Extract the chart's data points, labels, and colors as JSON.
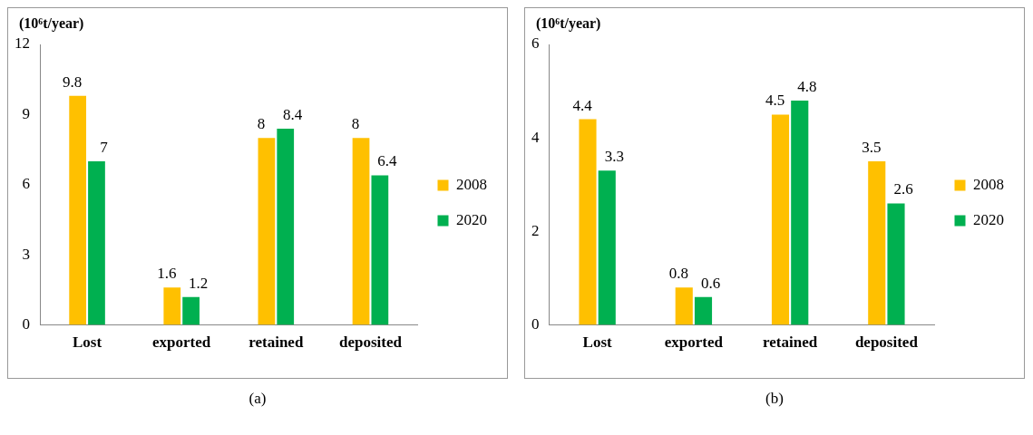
{
  "chart_data": [
    {
      "type": "bar",
      "ylabel": "(10⁶t/year)",
      "categories": [
        "Lost",
        "exported",
        "retained",
        "deposited"
      ],
      "series": [
        {
          "name": "2008",
          "color": "#ffc000",
          "values": [
            9.8,
            1.6,
            8,
            8
          ]
        },
        {
          "name": "2020",
          "color": "#00b050",
          "values": [
            7,
            1.2,
            8.4,
            6.4
          ]
        }
      ],
      "ylim": [
        0,
        12
      ],
      "yticks": [
        0,
        3,
        6,
        9,
        12
      ],
      "grid": false,
      "legend": "right",
      "data_labels": true,
      "annotations": [
        "(a)"
      ]
    },
    {
      "type": "bar",
      "ylabel": "(10⁶t/year)",
      "categories": [
        "Lost",
        "exported",
        "retained",
        "deposited"
      ],
      "series": [
        {
          "name": "2008",
          "color": "#ffc000",
          "values": [
            4.4,
            0.8,
            4.5,
            3.5
          ]
        },
        {
          "name": "2020",
          "color": "#00b050",
          "values": [
            3.3,
            0.6,
            4.8,
            2.6
          ]
        }
      ],
      "ylim": [
        0,
        6
      ],
      "yticks": [
        0,
        2,
        4,
        6
      ],
      "grid": false,
      "legend": "right",
      "data_labels": true,
      "annotations": [
        "(b)"
      ]
    }
  ]
}
